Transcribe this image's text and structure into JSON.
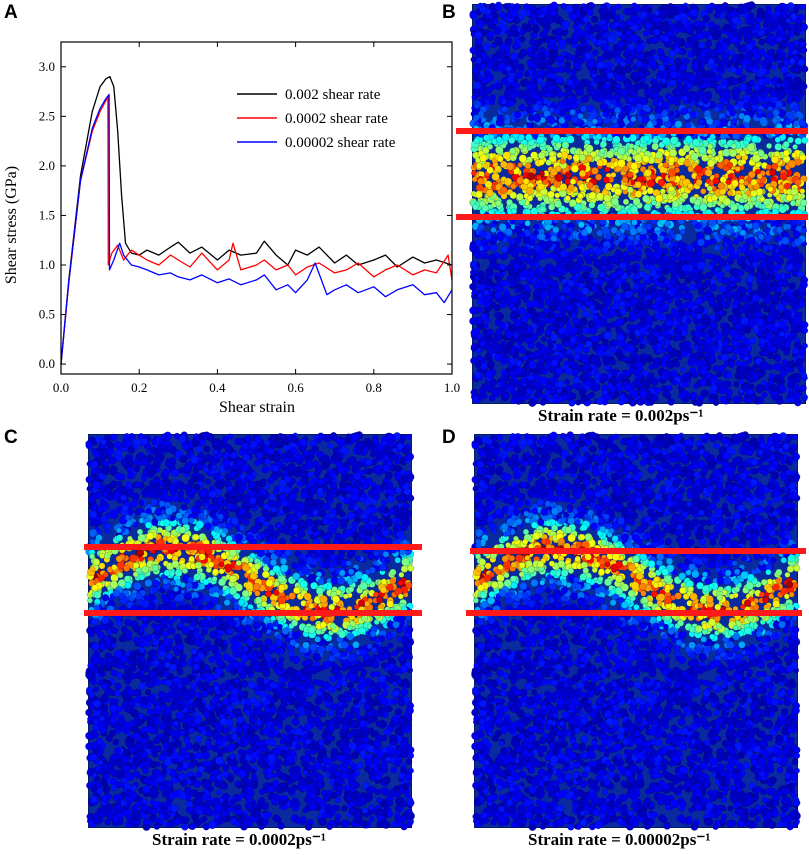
{
  "panels": {
    "a": {
      "letter": "A"
    },
    "b": {
      "letter": "B",
      "caption": "Strain rate = 0.002ps⁻¹"
    },
    "c": {
      "letter": "C",
      "caption": "Strain rate = 0.0002ps⁻¹"
    },
    "d": {
      "letter": "D",
      "caption": "Strain rate = 0.00002ps⁻¹"
    }
  },
  "colors": {
    "black_series": "#000000",
    "red_series": "#ff0000",
    "blue_series": "#0000ff",
    "band_line": "#ff1a1a",
    "md_background": "#0a2aa0"
  },
  "chart_data": {
    "type": "line",
    "title": "",
    "xlabel": "Shear strain",
    "ylabel": "Shear stress (GPa)",
    "xlim": [
      0.0,
      1.0
    ],
    "ylim": [
      -0.1,
      3.25
    ],
    "xticks": [
      "0.0",
      "0.2",
      "0.4",
      "0.6",
      "0.8",
      "1.0"
    ],
    "yticks": [
      "0.0",
      "0.5",
      "1.0",
      "1.5",
      "2.0",
      "2.5",
      "3.0"
    ],
    "legend_position": "top-right",
    "series": [
      {
        "name": "0.002 shear rate",
        "color": "#000000",
        "x": [
          0.0,
          0.02,
          0.05,
          0.08,
          0.1,
          0.115,
          0.125,
          0.135,
          0.145,
          0.155,
          0.165,
          0.18,
          0.2,
          0.22,
          0.25,
          0.28,
          0.3,
          0.33,
          0.36,
          0.4,
          0.43,
          0.46,
          0.5,
          0.52,
          0.55,
          0.58,
          0.6,
          0.63,
          0.66,
          0.7,
          0.73,
          0.76,
          0.8,
          0.83,
          0.86,
          0.9,
          0.93,
          0.96,
          1.0
        ],
        "y": [
          0.0,
          0.85,
          1.9,
          2.55,
          2.8,
          2.88,
          2.9,
          2.8,
          2.35,
          1.7,
          1.22,
          1.12,
          1.1,
          1.15,
          1.1,
          1.18,
          1.23,
          1.12,
          1.18,
          1.05,
          1.15,
          1.1,
          1.12,
          1.24,
          1.1,
          1.0,
          1.15,
          1.1,
          1.18,
          1.02,
          1.1,
          1.0,
          1.05,
          1.1,
          0.98,
          1.08,
          1.02,
          1.05,
          1.0
        ]
      },
      {
        "name": "0.0002 shear rate",
        "color": "#ff0000",
        "x": [
          0.0,
          0.02,
          0.05,
          0.08,
          0.1,
          0.115,
          0.12,
          0.121,
          0.13,
          0.145,
          0.16,
          0.18,
          0.2,
          0.22,
          0.25,
          0.28,
          0.3,
          0.33,
          0.36,
          0.4,
          0.43,
          0.44,
          0.46,
          0.5,
          0.52,
          0.55,
          0.58,
          0.6,
          0.63,
          0.66,
          0.7,
          0.73,
          0.76,
          0.8,
          0.83,
          0.86,
          0.9,
          0.93,
          0.96,
          0.99,
          1.0
        ],
        "y": [
          0.0,
          0.82,
          1.85,
          2.35,
          2.55,
          2.66,
          2.7,
          1.0,
          1.12,
          1.2,
          1.05,
          1.15,
          1.1,
          1.05,
          1.0,
          1.1,
          1.05,
          0.98,
          1.12,
          0.95,
          1.05,
          1.22,
          0.95,
          1.0,
          1.05,
          0.95,
          1.0,
          0.9,
          0.98,
          1.02,
          0.92,
          0.95,
          1.02,
          0.88,
          0.95,
          1.0,
          0.9,
          0.95,
          0.92,
          1.1,
          0.85
        ]
      },
      {
        "name": "0.00002 shear rate",
        "color": "#0000ff",
        "x": [
          0.0,
          0.02,
          0.05,
          0.08,
          0.1,
          0.115,
          0.123,
          0.124,
          0.135,
          0.15,
          0.16,
          0.18,
          0.2,
          0.22,
          0.25,
          0.28,
          0.3,
          0.33,
          0.36,
          0.4,
          0.43,
          0.46,
          0.5,
          0.52,
          0.55,
          0.58,
          0.6,
          0.63,
          0.65,
          0.68,
          0.7,
          0.73,
          0.76,
          0.8,
          0.83,
          0.86,
          0.9,
          0.93,
          0.96,
          0.98,
          1.0
        ],
        "y": [
          0.0,
          0.83,
          1.85,
          2.38,
          2.58,
          2.68,
          2.72,
          0.95,
          1.05,
          1.22,
          1.1,
          1.0,
          0.98,
          0.95,
          0.9,
          0.92,
          0.88,
          0.85,
          0.9,
          0.82,
          0.86,
          0.8,
          0.85,
          0.9,
          0.75,
          0.8,
          0.72,
          0.85,
          1.02,
          0.7,
          0.75,
          0.8,
          0.72,
          0.78,
          0.68,
          0.75,
          0.8,
          0.7,
          0.72,
          0.62,
          0.75
        ]
      }
    ]
  }
}
